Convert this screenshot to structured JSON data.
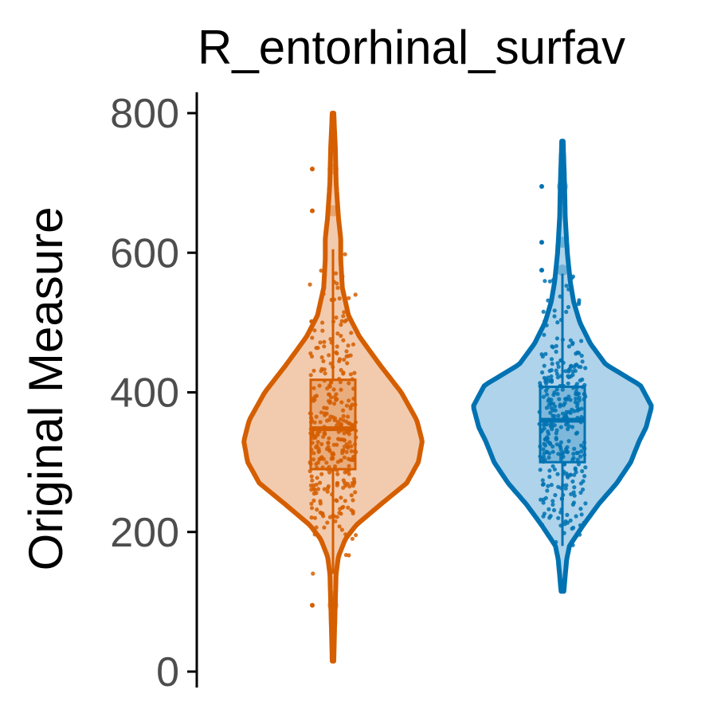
{
  "chart_data": {
    "type": "violin",
    "title": "R_entorhinal_surfav",
    "xlabel": "",
    "ylabel": "Original Measure",
    "ylim": [
      0,
      830
    ],
    "yticks": [
      0,
      200,
      400,
      600,
      800
    ],
    "grid": false,
    "legend": "none",
    "series": [
      {
        "color": "#D55E00",
        "fill": "#F2CBAE",
        "min": 15,
        "max": 800,
        "q1": 290,
        "median": 348,
        "q3": 418,
        "whisker_low": 140,
        "whisker_high": 605,
        "outliers": [
          95,
          660,
          720
        ],
        "density": [
          [
            15,
            1
          ],
          [
            60,
            2
          ],
          [
            100,
            3
          ],
          [
            140,
            4
          ],
          [
            165,
            7
          ],
          [
            190,
            16
          ],
          [
            210,
            30
          ],
          [
            240,
            62
          ],
          [
            270,
            95
          ],
          [
            300,
            110
          ],
          [
            330,
            115
          ],
          [
            360,
            108
          ],
          [
            400,
            88
          ],
          [
            440,
            60
          ],
          [
            480,
            34
          ],
          [
            510,
            20
          ],
          [
            550,
            12
          ],
          [
            590,
            10
          ],
          [
            620,
            10
          ],
          [
            650,
            7
          ],
          [
            700,
            4
          ],
          [
            750,
            3
          ],
          [
            800,
            1
          ]
        ]
      },
      {
        "color": "#0072B2",
        "fill": "#AED3EA",
        "min": 115,
        "max": 760,
        "q1": 300,
        "median": 360,
        "q3": 408,
        "whisker_low": 180,
        "whisker_high": 570,
        "outliers": [
          575,
          615,
          695
        ],
        "density": [
          [
            115,
            2
          ],
          [
            160,
            6
          ],
          [
            180,
            10
          ],
          [
            210,
            30
          ],
          [
            240,
            52
          ],
          [
            270,
            78
          ],
          [
            300,
            98
          ],
          [
            330,
            110
          ],
          [
            350,
            120
          ],
          [
            380,
            128
          ],
          [
            410,
            112
          ],
          [
            440,
            62
          ],
          [
            470,
            40
          ],
          [
            500,
            25
          ],
          [
            530,
            16
          ],
          [
            560,
            11
          ],
          [
            600,
            7
          ],
          [
            650,
            4
          ],
          [
            700,
            3
          ],
          [
            760,
            1
          ]
        ]
      }
    ]
  }
}
